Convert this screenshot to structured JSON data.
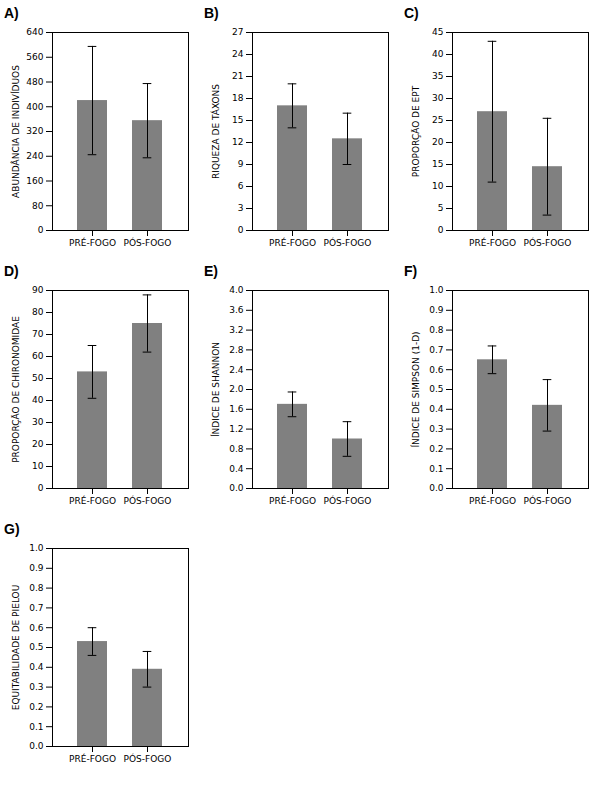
{
  "chart_data": [
    {
      "type": "bar",
      "title": "A)",
      "ylabel": "ABUNDÂNCIA DE INDIVÍDUOS",
      "categories": [
        "PRÉ-FOGO",
        "PÓS-FOGO"
      ],
      "values": [
        420,
        355
      ],
      "errors": [
        175,
        120
      ],
      "color": "#808080",
      "ylim": [
        0,
        640
      ],
      "yticks": [
        0,
        80,
        160,
        240,
        320,
        400,
        480,
        560,
        640
      ],
      "grid": false
    },
    {
      "type": "bar",
      "title": "B)",
      "ylabel": "RIQUEZA DE TÁXONS",
      "categories": [
        "PRÉ-FOGO",
        "PÓS-FOGO"
      ],
      "values": [
        17,
        12.5
      ],
      "errors": [
        3,
        3.5
      ],
      "color": "#808080",
      "ylim": [
        0,
        27
      ],
      "yticks": [
        0,
        3,
        6,
        9,
        12,
        15,
        18,
        21,
        24,
        27
      ],
      "grid": false
    },
    {
      "type": "bar",
      "title": "C)",
      "ylabel": "PROPORÇÃO DE EPT",
      "categories": [
        "PRÉ-FOGO",
        "PÓS-FOGO"
      ],
      "values": [
        27,
        14.5
      ],
      "errors": [
        16,
        11
      ],
      "color": "#808080",
      "ylim": [
        0,
        45
      ],
      "yticks": [
        0,
        5,
        10,
        15,
        20,
        25,
        30,
        35,
        40,
        45
      ],
      "grid": false
    },
    {
      "type": "bar",
      "title": "D)",
      "ylabel": "PROPORÇÃO DE CHIRONOMIDAE",
      "categories": [
        "PRÉ-FOGO",
        "PÓS-FOGO"
      ],
      "values": [
        53,
        75
      ],
      "errors": [
        12,
        13
      ],
      "color": "#808080",
      "ylim": [
        0,
        90
      ],
      "yticks": [
        0,
        10,
        20,
        30,
        40,
        50,
        60,
        70,
        80,
        90
      ],
      "grid": false
    },
    {
      "type": "bar",
      "title": "E)",
      "ylabel": "ÍNDICE DE SHANNON",
      "categories": [
        "PRÉ-FOGO",
        "PÓS-FOGO"
      ],
      "values": [
        1.7,
        1.0
      ],
      "errors": [
        0.25,
        0.35
      ],
      "color": "#808080",
      "ylim": [
        0.0,
        4.0
      ],
      "yticks": [
        {
          "value": 0,
          "label": "0.0"
        },
        0.4,
        0.8,
        1.2,
        1.6,
        {
          "value": 2,
          "label": "2.0"
        },
        2.4,
        2.8,
        3.2,
        3.6,
        {
          "value": 4,
          "label": "4.0"
        }
      ],
      "grid": false
    },
    {
      "type": "bar",
      "title": "F)",
      "ylabel": "ÍNDICE DE SIMPSON (1-D)",
      "categories": [
        "PRÉ-FOGO",
        "PÓS-FOGO"
      ],
      "values": [
        0.65,
        0.42
      ],
      "errors": [
        0.07,
        0.13
      ],
      "color": "#808080",
      "ylim": [
        0.0,
        1.0
      ],
      "yticks": [
        {
          "value": 0,
          "label": "0.0"
        },
        0.1,
        0.2,
        0.3,
        0.4,
        0.5,
        0.6,
        0.7,
        0.8,
        0.9,
        {
          "value": 1,
          "label": "1.0"
        }
      ],
      "grid": false
    },
    {
      "type": "bar",
      "title": "G)",
      "ylabel": "EQUITABILIDADE DE PIELOU",
      "categories": [
        "PRÉ-FOGO",
        "PÓS-FOGO"
      ],
      "values": [
        0.53,
        0.39
      ],
      "errors": [
        0.07,
        0.09
      ],
      "color": "#808080",
      "ylim": [
        0.0,
        1.0
      ],
      "yticks": [
        {
          "value": 0,
          "label": "0.0"
        },
        0.1,
        0.2,
        0.3,
        0.4,
        0.5,
        0.6,
        0.7,
        0.8,
        0.9,
        {
          "value": 1,
          "label": "1.0"
        }
      ],
      "grid": false
    }
  ]
}
